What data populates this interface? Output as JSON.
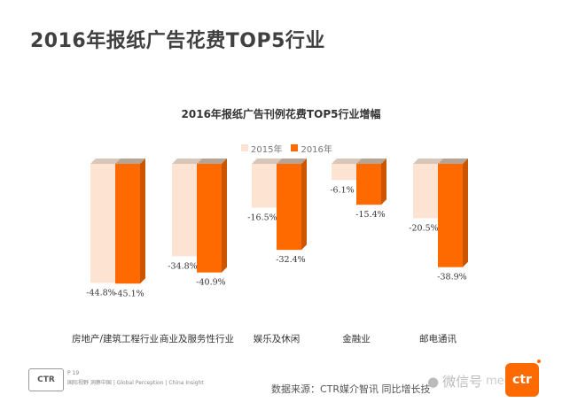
{
  "slide_title": "2016年报纸广告花费TOP5行业",
  "chart_data": {
    "type": "bar",
    "title": "2016年报纸广告刊例花费TOP5行业增幅",
    "categories": [
      "房地产/建筑工程行业",
      "商业及服务性行业",
      "娱乐及休闲",
      "金融业",
      "邮电通讯"
    ],
    "series": [
      {
        "name": "2015年",
        "values": [
          -44.8,
          -34.8,
          -16.5,
          -6.1,
          -20.5
        ],
        "color": "#fde4d2"
      },
      {
        "name": "2016年",
        "values": [
          -45.1,
          -40.9,
          -32.4,
          -15.4,
          -38.9
        ],
        "color": "#ff6a00"
      }
    ],
    "value_labels": [
      [
        "-44.8%",
        "-34.8%",
        "-16.5%",
        "-6.1%",
        "-20.5%"
      ],
      [
        "-45.1%",
        "-40.9%",
        "-32.4%",
        "-15.4%",
        "-38.9%"
      ]
    ],
    "ylim": [
      -50,
      0
    ],
    "grid": false,
    "legend_position": "top-center"
  },
  "footer": {
    "page": "P 19",
    "tagline": "国际视野 洞察中国 | Global Perception | China Insight",
    "logo_text": "CTR",
    "source": "数据来源：CTR媒介智讯   同比增长技",
    "wechat": "微信号",
    "brand": "ctr",
    "brand_suffix": "medium"
  }
}
